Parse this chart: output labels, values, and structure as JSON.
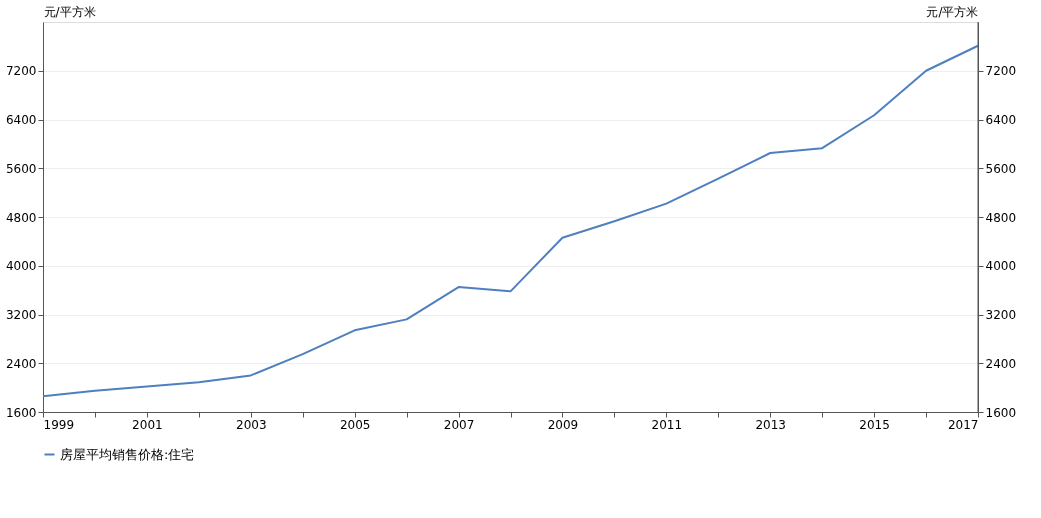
{
  "chart_data": {
    "type": "line",
    "ylabel": "元/平方米",
    "y2label": "元/平方米",
    "x": [
      1999,
      2000,
      2001,
      2002,
      2003,
      2004,
      2005,
      2006,
      2007,
      2008,
      2009,
      2010,
      2011,
      2012,
      2013,
      2014,
      2015,
      2016,
      2017
    ],
    "series": [
      {
        "name": "房屋平均销售价格:住宅",
        "color": "#4f7fbf",
        "values": [
          1860,
          1950,
          2020,
          2090,
          2200,
          2550,
          2940,
          3120,
          3650,
          3580,
          4460,
          4730,
          5020,
          5430,
          5850,
          5930,
          6470,
          7200,
          7610
        ]
      }
    ],
    "xlim": [
      1999,
      2017
    ],
    "xticks": [
      1999,
      {
        "value": 2000,
        "label": null
      },
      2001,
      {
        "value": 2002,
        "label": null
      },
      2003,
      {
        "value": 2004,
        "label": null
      },
      2005,
      {
        "value": 2006,
        "label": null
      },
      2007,
      {
        "value": 2008,
        "label": null
      },
      2009,
      {
        "value": 2010,
        "label": null
      },
      2011,
      {
        "value": 2012,
        "label": null
      },
      2013,
      {
        "value": 2014,
        "label": null
      },
      2015,
      {
        "value": 2016,
        "label": null
      },
      2017
    ],
    "ylim": [
      1600,
      8000
    ],
    "yticks": [
      1600,
      2400,
      3200,
      4000,
      4800,
      5600,
      6400,
      7200
    ],
    "y2lim": [
      1600,
      8000
    ],
    "y2ticks": [
      1600,
      2400,
      3200,
      4000,
      4800,
      5600,
      6400,
      7200
    ],
    "grid": "y",
    "legend": "bottom",
    "marker": "none",
    "line_style": "solid"
  }
}
